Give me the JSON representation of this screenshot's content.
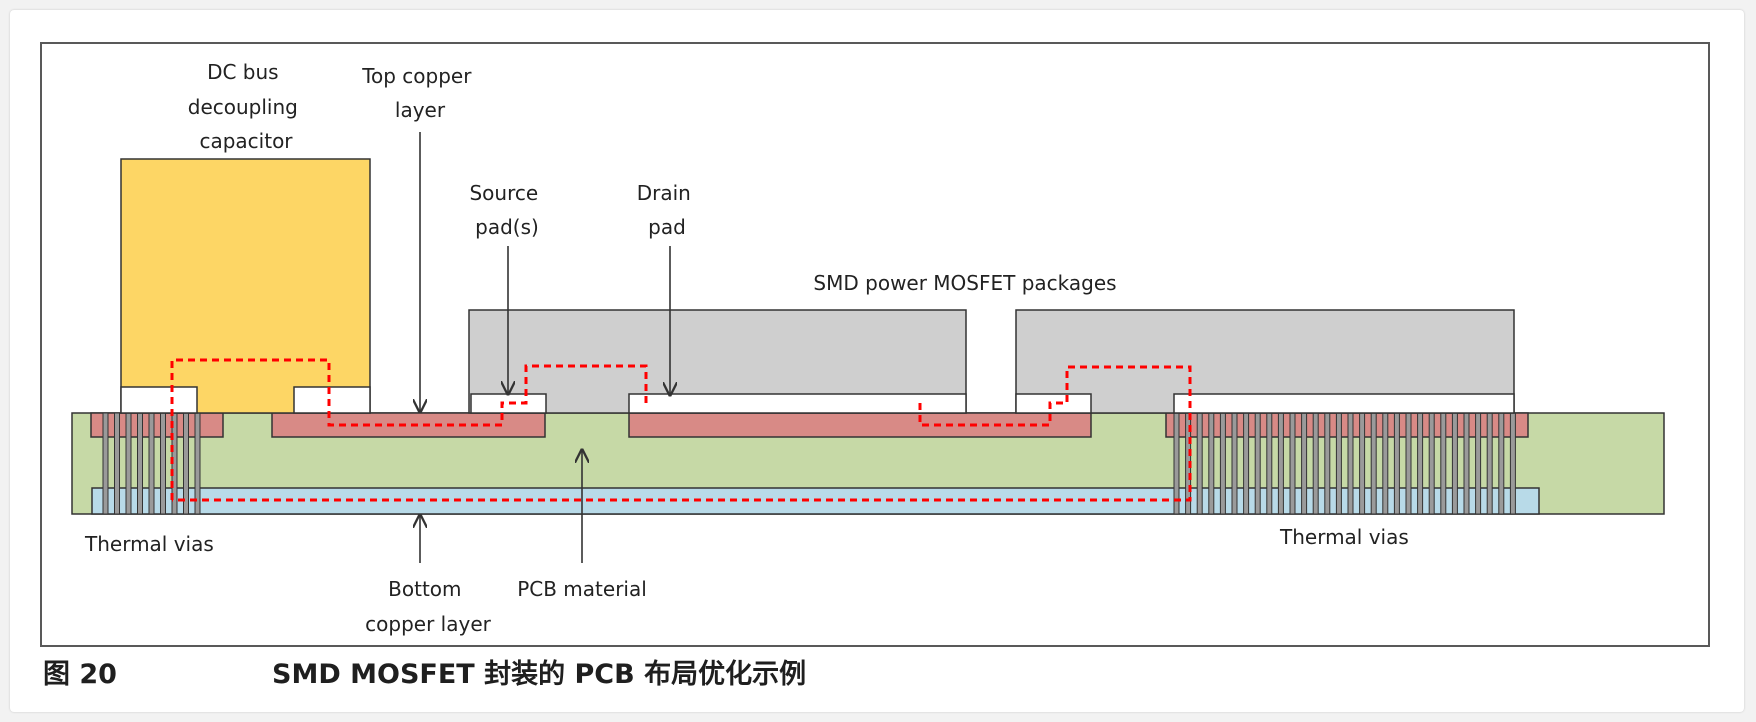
{
  "labels": {
    "capacitor": [
      "DC bus",
      "decoupling",
      "capacitor"
    ],
    "top_copper": [
      "Top copper",
      "layer"
    ],
    "source_pad": [
      "Source",
      "pad(s)"
    ],
    "drain_pad": [
      "Drain",
      "pad"
    ],
    "packages": "SMD power MOSFET packages",
    "thermal_vias_left": "Thermal vias",
    "thermal_vias_right": "Thermal vias",
    "bottom_copper": [
      "Bottom",
      "copper layer"
    ],
    "pcb_material": "PCB material"
  },
  "caption": {
    "figure_number": "图 20",
    "title": "SMD MOSFET 封装的 PCB 布局优化示例"
  },
  "colors": {
    "pcb": "#c6d9a6",
    "top_copper": "#d88a86",
    "bottom_copper": "#b8dae8",
    "capacitor": "#fdd665",
    "package": "#cfcfcf",
    "via": "#9a9a9a",
    "heat_path": "#ff0000"
  }
}
